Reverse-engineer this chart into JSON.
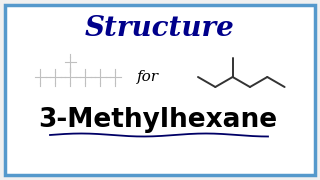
{
  "title": "Structure",
  "title_color": "#00008B",
  "title_fontsize": 20,
  "for_text": "for",
  "for_fontsize": 11,
  "for_color": "#000000",
  "compound_name": "3-Methylhexane",
  "compound_fontsize": 19,
  "compound_color": "#000000",
  "bg_color": "#f0f0f0",
  "border_color": "#5599cc",
  "border_linewidth": 2.5,
  "underline_color": "#000066",
  "skeletal_color": "#333333",
  "ghost_color": "#c0c0c0",
  "ghost_linewidth": 0.8,
  "skeletal_linewidth": 1.4
}
